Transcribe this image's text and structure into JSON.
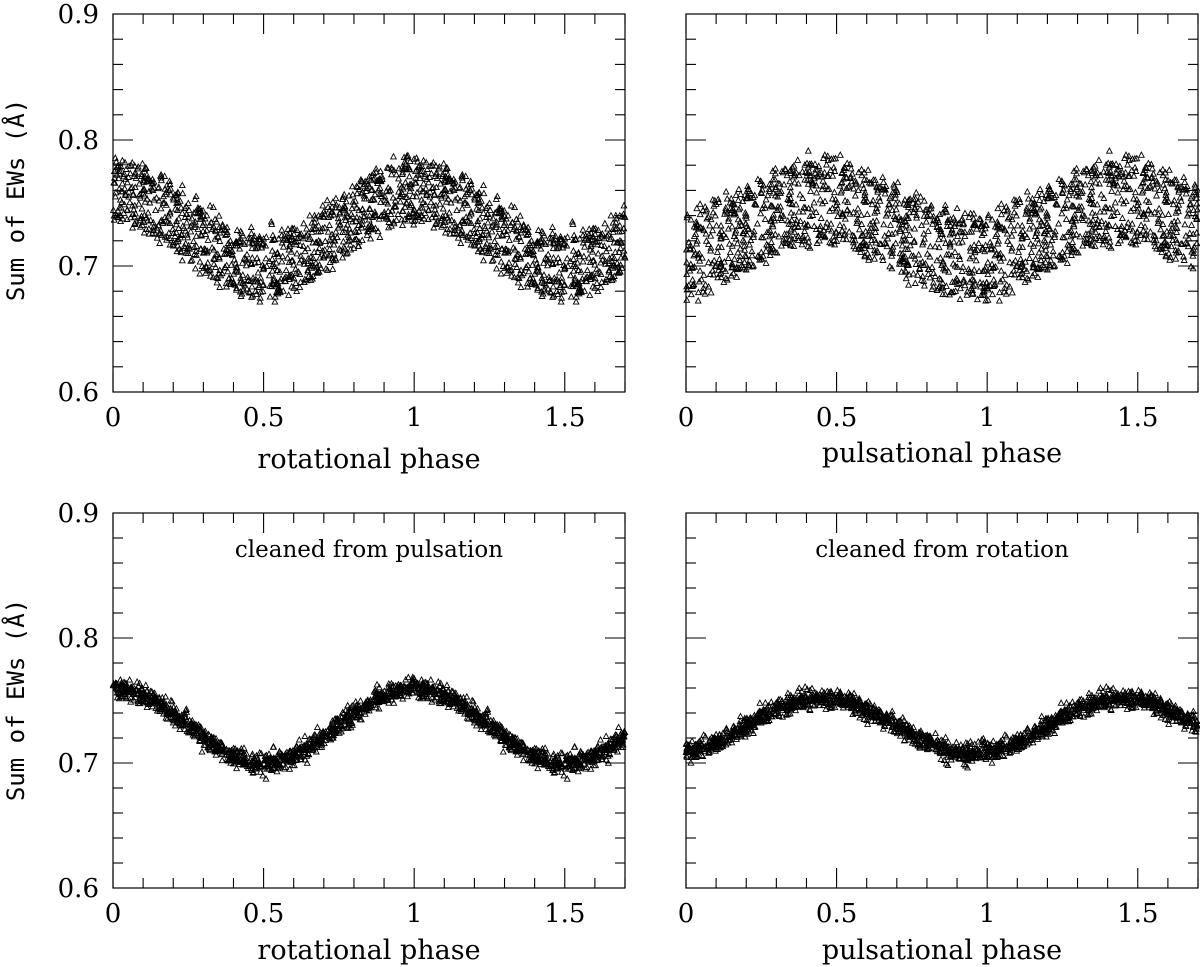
{
  "chart_data": [
    {
      "id": "top-left",
      "type": "scatter",
      "marker": "open-triangle",
      "xlabel": "rotational phase",
      "ylabel": "Sum of EWs (Å)",
      "annotation": "",
      "xlim": [
        0,
        1.7
      ],
      "ylim": [
        0.6,
        0.9
      ],
      "xticks": [
        0,
        0.5,
        1,
        1.5
      ],
      "xticklabels": [
        "0",
        "0.5",
        "1",
        "1.5"
      ],
      "yticks": [
        0.6,
        0.7,
        0.8,
        0.9
      ],
      "yticklabels": [
        "0.6",
        "0.7",
        "0.8",
        "0.9"
      ],
      "model": {
        "mean": 0.73,
        "rot_amp": 0.03,
        "rot_peak_phase": 0.0,
        "puls_amp": 0.022,
        "puls_peak_phase": 0.45,
        "noise_sd": 0.004
      },
      "series": [
        {
          "name": "Sum of EWs",
          "x_phase": "rotational",
          "n_points": 1000
        }
      ]
    },
    {
      "id": "top-right",
      "type": "scatter",
      "marker": "open-triangle",
      "xlabel": "pulsational phase",
      "ylabel": "",
      "annotation": "",
      "xlim": [
        0,
        1.7
      ],
      "ylim": [
        0.6,
        0.9
      ],
      "xticks": [
        0,
        0.5,
        1,
        1.5
      ],
      "xticklabels": [
        "0",
        "0.5",
        "1",
        "1.5"
      ],
      "yticks": [
        0.6,
        0.7,
        0.8,
        0.9
      ],
      "yticklabels": [],
      "model": {
        "mean": 0.73,
        "rot_amp": 0.03,
        "rot_peak_phase": 0.0,
        "puls_amp": 0.022,
        "puls_peak_phase": 0.45,
        "noise_sd": 0.004
      },
      "series": [
        {
          "name": "Sum of EWs",
          "x_phase": "pulsational",
          "n_points": 1000
        }
      ]
    },
    {
      "id": "bottom-left",
      "type": "scatter",
      "marker": "open-triangle",
      "xlabel": "rotational phase",
      "ylabel": "Sum of EWs (Å)",
      "annotation": "cleaned from pulsation",
      "xlim": [
        0,
        1.7
      ],
      "ylim": [
        0.6,
        0.9
      ],
      "xticks": [
        0,
        0.5,
        1,
        1.5
      ],
      "xticklabels": [
        "0",
        "0.5",
        "1",
        "1.5"
      ],
      "yticks": [
        0.6,
        0.7,
        0.8,
        0.9
      ],
      "yticklabels": [
        "0.6",
        "0.7",
        "0.8",
        "0.9"
      ],
      "model": {
        "mean": 0.73,
        "rot_amp": 0.03,
        "rot_peak_phase": 0.0,
        "puls_amp": 0.0,
        "puls_peak_phase": 0.45,
        "noise_sd": 0.004
      },
      "series": [
        {
          "name": "Sum of EWs (cleaned)",
          "x_phase": "rotational",
          "n_points": 1000
        }
      ]
    },
    {
      "id": "bottom-right",
      "type": "scatter",
      "marker": "open-triangle",
      "xlabel": "pulsational phase",
      "ylabel": "",
      "annotation": "cleaned from rotation",
      "xlim": [
        0,
        1.7
      ],
      "ylim": [
        0.6,
        0.9
      ],
      "xticks": [
        0,
        0.5,
        1,
        1.5
      ],
      "xticklabels": [
        "0",
        "0.5",
        "1",
        "1.5"
      ],
      "yticks": [
        0.6,
        0.7,
        0.8,
        0.9
      ],
      "yticklabels": [],
      "model": {
        "mean": 0.73,
        "rot_amp": 0.0,
        "rot_peak_phase": 0.0,
        "puls_amp": 0.022,
        "puls_peak_phase": 0.45,
        "noise_sd": 0.004
      },
      "series": [
        {
          "name": "Sum of EWs (cleaned)",
          "x_phase": "pulsational",
          "n_points": 1000
        }
      ]
    }
  ]
}
